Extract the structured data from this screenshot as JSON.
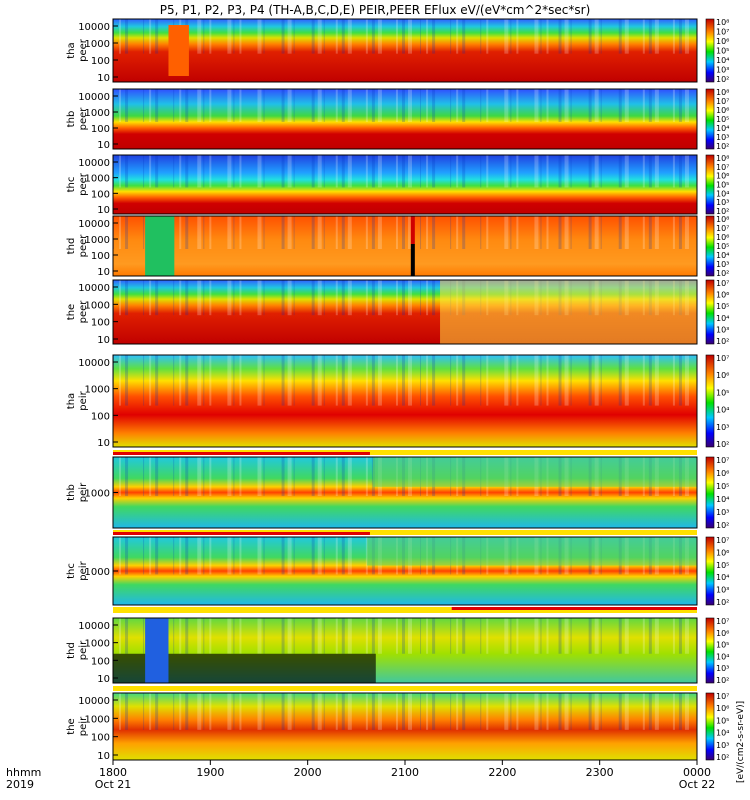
{
  "title": "P5, P1, P2, P3, P4 (TH-A,B,C,D,E) PEIR,PEER EFlux eV/(eV*cm^2*sec*sr)",
  "colorbar_label": "[eV/(cm2-s-sr-eV)]",
  "chart_data": {
    "type": "heatmap",
    "time_axis": {
      "label_line1": "hhmm",
      "label_line2": "2019",
      "ticks": [
        "1800",
        "1900",
        "2000",
        "2100",
        "2200",
        "2300",
        "0000"
      ],
      "tick_dates": [
        "Oct 21",
        "",
        "",
        "",
        "",
        "",
        "Oct 22"
      ],
      "range": [
        "2019-10-21 18:00",
        "2019-10-22 00:00"
      ]
    },
    "colorbar": {
      "scale": "log",
      "colormap": "rainbow",
      "low_color": "#3a0070",
      "high_color": "#c00000"
    },
    "panels": [
      {
        "probe": "tha",
        "species": "peer",
        "ylabel": "tha\npeer",
        "yscale": "log",
        "yticks": [
          "10",
          "100",
          "1000",
          "10000"
        ],
        "cbar_ticks": [
          "10²",
          "10³",
          "10⁴",
          "10⁵",
          "10⁶",
          "10⁷",
          "10⁸"
        ]
      },
      {
        "probe": "thb",
        "species": "peer",
        "ylabel": "thb\npeer",
        "yscale": "log",
        "yticks": [
          "10",
          "100",
          "1000",
          "10000"
        ],
        "cbar_ticks": [
          "10²",
          "10³",
          "10⁴",
          "10⁵",
          "10⁶",
          "10⁷",
          "10⁸"
        ]
      },
      {
        "probe": "thc",
        "species": "peer",
        "ylabel": "thc\npeer",
        "yscale": "log",
        "yticks": [
          "10",
          "100",
          "1000",
          "10000"
        ],
        "cbar_ticks": [
          "10²",
          "10³",
          "10⁴",
          "10⁵",
          "10⁶",
          "10⁷",
          "10⁸"
        ]
      },
      {
        "probe": "thd",
        "species": "peer",
        "ylabel": "thd\npeer",
        "yscale": "log",
        "yticks": [
          "10",
          "100",
          "1000",
          "10000"
        ],
        "cbar_ticks": [
          "10²",
          "10³",
          "10⁴",
          "10⁵",
          "10⁶",
          "10⁷",
          "10⁸"
        ]
      },
      {
        "probe": "the",
        "species": "peer",
        "ylabel": "the\npeer",
        "yscale": "log",
        "yticks": [
          "10",
          "100",
          "1000",
          "10000"
        ],
        "cbar_ticks": [
          "10²",
          "10³",
          "10⁴",
          "10⁵",
          "10⁶",
          "10⁷"
        ]
      },
      {
        "probe": "tha",
        "species": "peir",
        "ylabel": "tha\npeir",
        "yscale": "log",
        "yticks": [
          "10",
          "100",
          "1000",
          "10000"
        ],
        "cbar_ticks": [
          "10²",
          "10³",
          "10⁴",
          "10⁵",
          "10⁶",
          "10⁷"
        ]
      },
      {
        "probe": "thb",
        "species": "peir",
        "ylabel": "thb\npeir",
        "yscale": "log",
        "yticks": [
          "1000"
        ],
        "cbar_ticks": [
          "10²",
          "10³",
          "10⁴",
          "10⁵",
          "10⁶",
          "10⁷"
        ]
      },
      {
        "probe": "thc",
        "species": "peir",
        "ylabel": "thc\npeir",
        "yscale": "log",
        "yticks": [
          "1000"
        ],
        "cbar_ticks": [
          "10²",
          "10³",
          "10⁴",
          "10⁵",
          "10⁶",
          "10⁷"
        ]
      },
      {
        "probe": "thd",
        "species": "peir",
        "ylabel": "thd\npeir",
        "yscale": "log",
        "yticks": [
          "10",
          "100",
          "1000",
          "10000"
        ],
        "cbar_ticks": [
          "10²",
          "10³",
          "10⁴",
          "10⁵",
          "10⁶",
          "10⁷"
        ]
      },
      {
        "probe": "the",
        "species": "peir",
        "ylabel": "the\npeir",
        "yscale": "log",
        "yticks": [
          "10",
          "100",
          "1000",
          "10000"
        ],
        "cbar_ticks": [
          "10²",
          "10³",
          "10⁴",
          "10⁵",
          "10⁶",
          "10⁷"
        ]
      }
    ]
  }
}
